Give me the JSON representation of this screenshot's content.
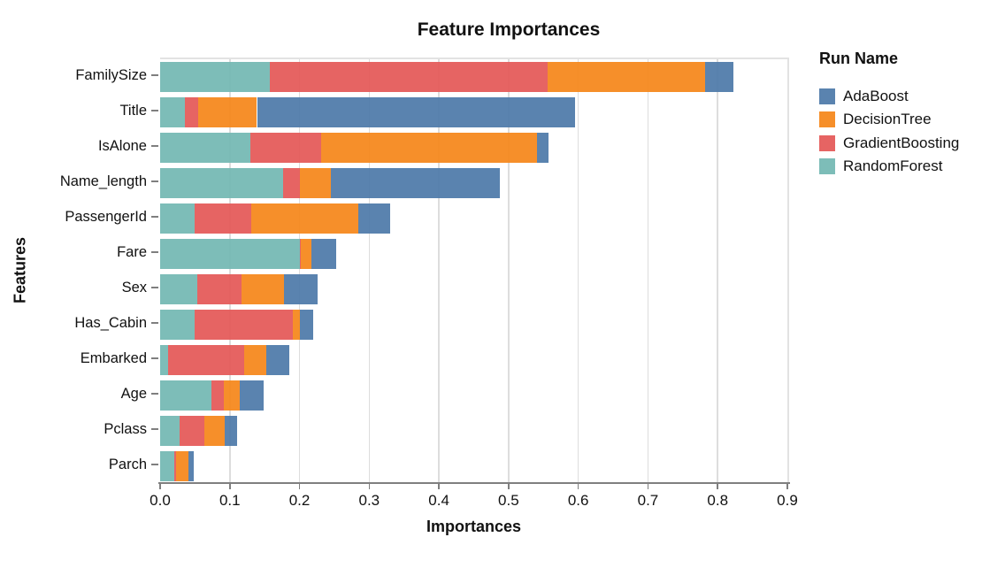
{
  "title": "Feature Importances",
  "axes": {
    "x_label": "Importances",
    "y_label": "Features",
    "x_ticks": [
      "0.0",
      "0.1",
      "0.2",
      "0.3",
      "0.4",
      "0.5",
      "0.6",
      "0.7",
      "0.8",
      "0.9"
    ]
  },
  "legend": {
    "title": "Run Name",
    "entries": [
      {
        "label": "AdaBoost",
        "color": "#4c78a8"
      },
      {
        "label": "DecisionTree",
        "color": "#f58518"
      },
      {
        "label": "GradientBoosting",
        "color": "#e45756"
      },
      {
        "label": "RandomForest",
        "color": "#72b7b2"
      }
    ]
  },
  "chart_data": {
    "type": "bar",
    "orientation": "horizontal",
    "stacked": true,
    "title": "Feature Importances",
    "xlabel": "Importances",
    "ylabel": "Features",
    "xlim": [
      0.0,
      0.9
    ],
    "grid": true,
    "legend_position": "right",
    "legend_title": "Run Name",
    "bar_opacity": 0.92,
    "categories": [
      "FamilySize",
      "Title",
      "IsAlone",
      "Name_length",
      "PassengerId",
      "Fare",
      "Sex",
      "Has_Cabin",
      "Embarked",
      "Age",
      "Pclass",
      "Parch"
    ],
    "series": [
      {
        "name": "RandomForest",
        "color": "#72b7b2",
        "values": [
          0.157,
          0.036,
          0.129,
          0.176,
          0.049,
          0.2,
          0.053,
          0.05,
          0.011,
          0.073,
          0.028,
          0.02
        ]
      },
      {
        "name": "GradientBoosting",
        "color": "#e45756",
        "values": [
          0.399,
          0.019,
          0.102,
          0.025,
          0.082,
          0.002,
          0.064,
          0.141,
          0.109,
          0.019,
          0.035,
          0.003
        ]
      },
      {
        "name": "DecisionTree",
        "color": "#f58518",
        "values": [
          0.226,
          0.084,
          0.31,
          0.044,
          0.153,
          0.015,
          0.061,
          0.009,
          0.032,
          0.022,
          0.03,
          0.017
        ]
      },
      {
        "name": "AdaBoost",
        "color": "#4c78a8",
        "values": [
          0.041,
          0.456,
          0.016,
          0.243,
          0.046,
          0.035,
          0.048,
          0.02,
          0.033,
          0.035,
          0.017,
          0.008
        ]
      }
    ],
    "totals": [
      0.823,
      0.595,
      0.557,
      0.488,
      0.33,
      0.252,
      0.226,
      0.22,
      0.185,
      0.149,
      0.11,
      0.048
    ]
  }
}
